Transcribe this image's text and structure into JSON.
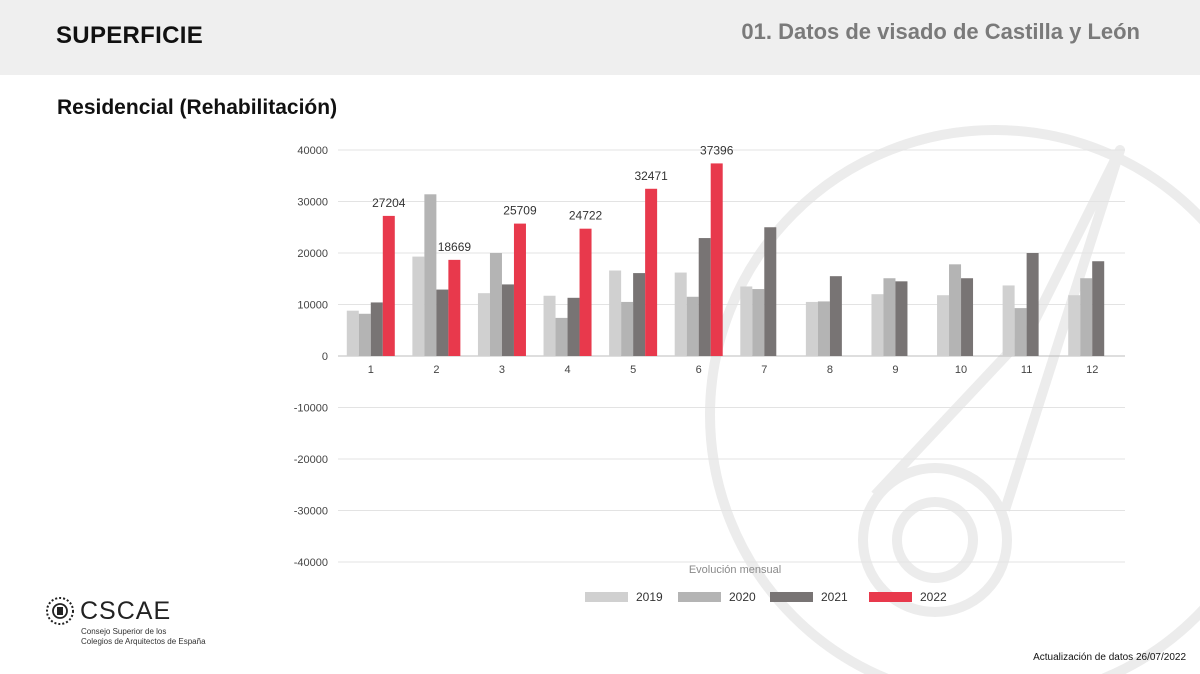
{
  "header": {
    "section_title": "SUPERFICIE",
    "document_title": "01. Datos de visado de Castilla y León"
  },
  "subtitle": "Residencial (Rehabilitación)",
  "logo": {
    "name": "CSCAE",
    "line1": "Consejo Superior de los",
    "line2": "Colegios de Arquitectos de España"
  },
  "footer": {
    "update_note": "Actualización de datos 26/07/2022"
  },
  "chart_data": {
    "type": "bar",
    "xlabel": "Evolución mensual",
    "ylabel": "",
    "ylim": [
      -40000,
      40000
    ],
    "yticks": [
      40000,
      30000,
      20000,
      10000,
      0,
      -10000,
      -20000,
      -30000,
      -40000
    ],
    "grid": true,
    "legend_position": "bottom",
    "categories": [
      "1",
      "2",
      "3",
      "4",
      "5",
      "6",
      "7",
      "8",
      "9",
      "10",
      "11",
      "12"
    ],
    "series": [
      {
        "name": "2019",
        "color": "#d0d0d0",
        "values": [
          8800,
          19300,
          12200,
          11700,
          16600,
          16200,
          13500,
          10500,
          12000,
          11800,
          13700,
          11800
        ]
      },
      {
        "name": "2020",
        "color": "#b4b4b4",
        "values": [
          8200,
          31400,
          20000,
          7400,
          10500,
          11500,
          13000,
          10600,
          15100,
          17800,
          9300,
          15100
        ]
      },
      {
        "name": "2021",
        "color": "#787474",
        "values": [
          10400,
          12900,
          13900,
          11300,
          16100,
          22900,
          25000,
          15500,
          14500,
          15100,
          20000,
          18400
        ]
      },
      {
        "name": "2022",
        "color": "#e8394c",
        "values": [
          27204,
          18669,
          25709,
          24722,
          32471,
          37396,
          null,
          null,
          null,
          null,
          null,
          null
        ]
      }
    ],
    "data_labels": {
      "series": "2022",
      "values": [
        "27204",
        "18669",
        "25709",
        "24722",
        "32471",
        "37396"
      ]
    }
  }
}
